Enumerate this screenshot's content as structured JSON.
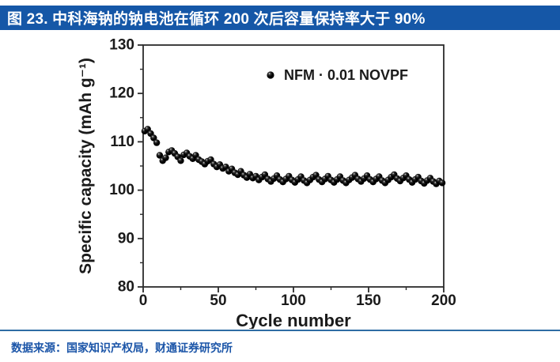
{
  "header": {
    "title": "图 23. 中科海钠的钠电池在循环 200 次后容量保持率大于 90%"
  },
  "footer": {
    "source": "数据来源：国家知识产权局，财通证券研究所"
  },
  "colors": {
    "header_bg": "#1557a7",
    "header_text": "#ffffff",
    "footer_text": "#1b55a8",
    "separator": "#2e6da4",
    "axis": "#2b2b2b",
    "tick_label": "#1a1a1a",
    "marker_dark": "#000000",
    "marker_mid": "#3a3a3a",
    "marker_highlight": "#ffffff",
    "plot_bg": "#ffffff"
  },
  "chart_data": {
    "type": "scatter",
    "title": "",
    "xlabel": "Cycle number",
    "ylabel": "Specific capacity (mAh g⁻¹)",
    "xlim": [
      0,
      200
    ],
    "ylim": [
      80,
      130
    ],
    "xticks": [
      0,
      50,
      100,
      150,
      200
    ],
    "xticks_minor": [
      25,
      75,
      125,
      175
    ],
    "yticks": [
      80,
      90,
      100,
      110,
      120,
      130
    ],
    "yticks_minor": [
      85,
      95,
      105,
      115,
      125
    ],
    "grid": false,
    "frame": "box",
    "legend": {
      "label": "NFM · 0.01 NOVPF",
      "position": "top-right"
    },
    "series": [
      {
        "name": "NFM · 0.01 NOVPF",
        "marker": "sphere",
        "points": [
          [
            1,
            112.2
          ],
          [
            3,
            112.6
          ],
          [
            5,
            111.7
          ],
          [
            7,
            110.8
          ],
          [
            9,
            109.8
          ],
          [
            11,
            107.2
          ],
          [
            13,
            106.1
          ],
          [
            15,
            106.7
          ],
          [
            17,
            107.9
          ],
          [
            19,
            108.2
          ],
          [
            21,
            107.6
          ],
          [
            23,
            106.9
          ],
          [
            25,
            106.1
          ],
          [
            27,
            107.3
          ],
          [
            29,
            107.7
          ],
          [
            31,
            107.0
          ],
          [
            33,
            106.5
          ],
          [
            35,
            107.2
          ],
          [
            37,
            106.3
          ],
          [
            39,
            105.9
          ],
          [
            41,
            105.4
          ],
          [
            43,
            106.0
          ],
          [
            45,
            106.3
          ],
          [
            47,
            105.4
          ],
          [
            49,
            104.8
          ],
          [
            51,
            105.3
          ],
          [
            53,
            104.5
          ],
          [
            55,
            104.8
          ],
          [
            57,
            103.9
          ],
          [
            59,
            104.4
          ],
          [
            61,
            103.6
          ],
          [
            63,
            103.2
          ],
          [
            65,
            103.9
          ],
          [
            67,
            103.1
          ],
          [
            69,
            102.6
          ],
          [
            71,
            103.3
          ],
          [
            73,
            102.5
          ],
          [
            75,
            102.9
          ],
          [
            77,
            102.1
          ],
          [
            79,
            102.7
          ],
          [
            81,
            103.2
          ],
          [
            83,
            102.3
          ],
          [
            85,
            101.8
          ],
          [
            87,
            102.4
          ],
          [
            89,
            103.0
          ],
          [
            91,
            102.2
          ],
          [
            93,
            101.7
          ],
          [
            95,
            102.3
          ],
          [
            97,
            102.9
          ],
          [
            99,
            102.1
          ],
          [
            101,
            101.6
          ],
          [
            103,
            102.2
          ],
          [
            105,
            102.8
          ],
          [
            107,
            102.0
          ],
          [
            109,
            101.5
          ],
          [
            111,
            102.1
          ],
          [
            113,
            102.7
          ],
          [
            115,
            103.1
          ],
          [
            117,
            102.2
          ],
          [
            119,
            101.7
          ],
          [
            121,
            102.3
          ],
          [
            123,
            102.9
          ],
          [
            125,
            102.1
          ],
          [
            127,
            101.6
          ],
          [
            129,
            102.2
          ],
          [
            131,
            102.8
          ],
          [
            133,
            102.0
          ],
          [
            135,
            101.5
          ],
          [
            137,
            102.1
          ],
          [
            139,
            102.6
          ],
          [
            141,
            103.1
          ],
          [
            143,
            102.3
          ],
          [
            145,
            101.8
          ],
          [
            147,
            102.4
          ],
          [
            149,
            103.0
          ],
          [
            151,
            102.2
          ],
          [
            153,
            101.7
          ],
          [
            155,
            102.3
          ],
          [
            157,
            102.8
          ],
          [
            159,
            102.0
          ],
          [
            161,
            101.5
          ],
          [
            163,
            102.1
          ],
          [
            165,
            102.7
          ],
          [
            167,
            103.2
          ],
          [
            169,
            102.4
          ],
          [
            171,
            101.9
          ],
          [
            173,
            102.5
          ],
          [
            175,
            103.0
          ],
          [
            177,
            102.2
          ],
          [
            179,
            101.6
          ],
          [
            181,
            102.2
          ],
          [
            183,
            102.7
          ],
          [
            185,
            101.9
          ],
          [
            187,
            101.4
          ],
          [
            189,
            102.0
          ],
          [
            191,
            102.5
          ],
          [
            193,
            101.8
          ],
          [
            195,
            101.3
          ],
          [
            197,
            101.9
          ],
          [
            199,
            101.5
          ]
        ]
      }
    ]
  }
}
